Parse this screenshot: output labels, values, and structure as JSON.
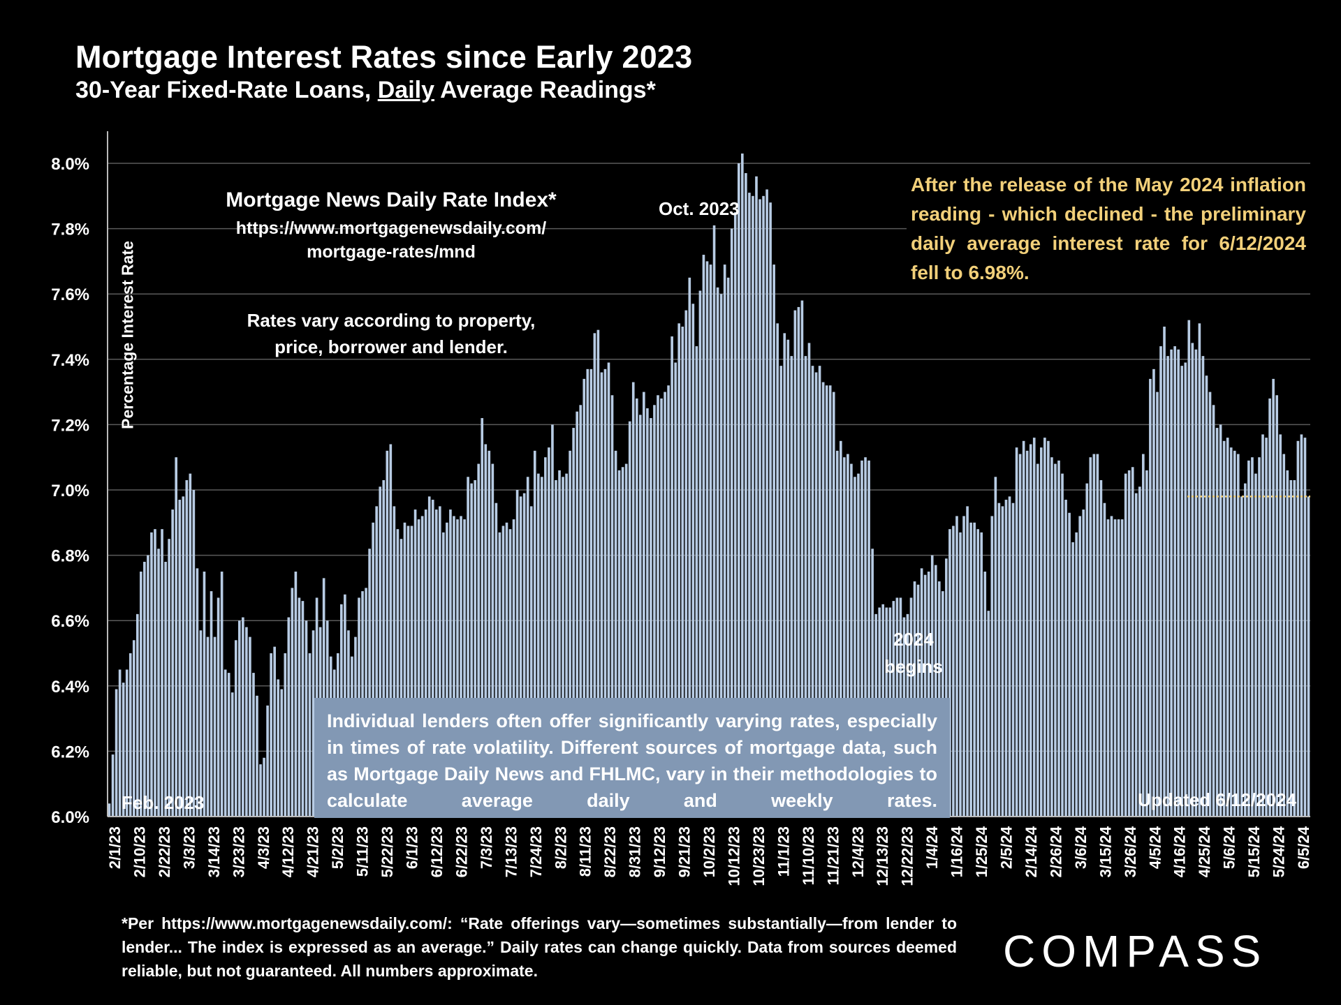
{
  "title": "Mortgage Interest Rates since Early 2023",
  "subtitle_pre": "30-Year Fixed-Rate Loans, ",
  "subtitle_underlined": "Daily",
  "subtitle_post": " Average Readings*",
  "source": {
    "title": "Mortgage News Daily Rate Index*",
    "url_line1": "https://www.mortgagenewsdaily.com/",
    "url_line2": "mortgage-rates/mnd",
    "note": "Rates vary according to property, price, borrower and lender."
  },
  "annotation": "After the release of the May 2024 inflation reading - which declined - the preliminary daily average interest rate for 6/12/2024 fell to 6.98%.",
  "disclaimer": "Individual lenders often offer significantly varying rates, especially in times of rate volatility. Different sources of mortgage data, such as Mortgage Daily News and FHLMC, vary in their methodologies to calculate average daily and weekly rates.",
  "footnote": "*Per https://www.mortgagenewsdaily.com/: “Rate offerings vary—sometimes substantially—from lender to lender... The index is expressed as an average.” Daily rates can change quickly. Data from sources deemed reliable, but not guaranteed. All numbers approximate.",
  "logo": "COMPASS",
  "colors": {
    "bar": "#b8cce4",
    "annotation": "#f2d07a",
    "disclaimer_bg": "#8298b4"
  },
  "chart_data": {
    "type": "bar",
    "title": "Mortgage Interest Rates since Early 2023",
    "ylabel": "Percentage Interest  Rate",
    "ylim": [
      6.0,
      8.1
    ],
    "yticks": [
      "6.0%",
      "6.2%",
      "6.4%",
      "6.6%",
      "6.8%",
      "7.0%",
      "7.2%",
      "7.4%",
      "7.6%",
      "7.8%",
      "8.0%"
    ],
    "ytick_values": [
      6.0,
      6.2,
      6.4,
      6.6,
      6.8,
      7.0,
      7.2,
      7.4,
      7.6,
      7.8,
      8.0
    ],
    "grid": true,
    "x_tick_labels": [
      "2/1/23",
      "2/10/23",
      "2/22/23",
      "3/3/23",
      "3/14/23",
      "3/23/23",
      "4/3/23",
      "4/12/23",
      "4/21/23",
      "5/2/23",
      "5/11/23",
      "5/22/23",
      "6/1/23",
      "6/12/23",
      "6/22/23",
      "7/3/23",
      "7/13/23",
      "7/24/23",
      "8/2/23",
      "8/11/23",
      "8/22/23",
      "8/31/23",
      "9/12/23",
      "9/21/23",
      "10/2/23",
      "10/12/23",
      "10/23/23",
      "11/1/23",
      "11/10/23",
      "11/21/23",
      "12/4/23",
      "12/13/23",
      "12/22/23",
      "1/4/24",
      "1/16/24",
      "1/25/24",
      "2/5/24",
      "2/14/24",
      "2/26/24",
      "3/6/24",
      "3/15/24",
      "3/26/24",
      "4/5/24",
      "4/16/24",
      "4/25/24",
      "5/6/24",
      "5/15/24",
      "5/24/24",
      "6/5/24"
    ],
    "values": [
      6.04,
      6.19,
      6.39,
      6.45,
      6.41,
      6.45,
      6.5,
      6.54,
      6.62,
      6.75,
      6.78,
      6.8,
      6.87,
      6.88,
      6.82,
      6.88,
      6.78,
      6.85,
      6.94,
      7.1,
      6.97,
      6.98,
      7.03,
      7.05,
      7.0,
      6.76,
      6.57,
      6.75,
      6.55,
      6.69,
      6.55,
      6.67,
      6.75,
      6.45,
      6.44,
      6.38,
      6.54,
      6.6,
      6.61,
      6.58,
      6.55,
      6.44,
      6.37,
      6.16,
      6.18,
      6.34,
      6.5,
      6.52,
      6.42,
      6.39,
      6.5,
      6.61,
      6.7,
      6.75,
      6.67,
      6.66,
      6.6,
      6.5,
      6.57,
      6.67,
      6.58,
      6.73,
      6.6,
      6.49,
      6.45,
      6.5,
      6.65,
      6.68,
      6.57,
      6.49,
      6.55,
      6.67,
      6.69,
      6.7,
      6.82,
      6.9,
      6.95,
      7.01,
      7.03,
      7.12,
      7.14,
      6.95,
      6.88,
      6.85,
      6.9,
      6.89,
      6.89,
      6.94,
      6.91,
      6.92,
      6.94,
      6.98,
      6.97,
      6.94,
      6.95,
      6.87,
      6.9,
      6.94,
      6.92,
      6.91,
      6.92,
      6.91,
      7.04,
      7.02,
      7.03,
      7.08,
      7.22,
      7.14,
      7.12,
      7.08,
      6.96,
      6.87,
      6.89,
      6.9,
      6.88,
      6.91,
      7.0,
      6.98,
      6.99,
      7.04,
      6.95,
      7.12,
      7.05,
      7.04,
      7.1,
      7.13,
      7.2,
      7.03,
      7.06,
      7.04,
      7.05,
      7.12,
      7.19,
      7.24,
      7.26,
      7.34,
      7.37,
      7.37,
      7.48,
      7.49,
      7.36,
      7.37,
      7.39,
      7.29,
      7.12,
      7.06,
      7.07,
      7.08,
      7.21,
      7.33,
      7.28,
      7.23,
      7.3,
      7.25,
      7.22,
      7.26,
      7.29,
      7.28,
      7.3,
      7.32,
      7.47,
      7.39,
      7.51,
      7.5,
      7.55,
      7.65,
      7.57,
      7.44,
      7.61,
      7.72,
      7.7,
      7.69,
      7.81,
      7.62,
      7.6,
      7.69,
      7.65,
      7.8,
      7.85,
      8.0,
      8.03,
      7.97,
      7.91,
      7.9,
      7.96,
      7.89,
      7.9,
      7.92,
      7.88,
      7.69,
      7.51,
      7.38,
      7.48,
      7.46,
      7.41,
      7.55,
      7.56,
      7.58,
      7.41,
      7.45,
      7.38,
      7.36,
      7.38,
      7.33,
      7.32,
      7.32,
      7.3,
      7.12,
      7.15,
      7.1,
      7.11,
      7.08,
      7.04,
      7.05,
      7.09,
      7.1,
      7.09,
      6.82,
      6.62,
      6.64,
      6.65,
      6.64,
      6.64,
      6.66,
      6.67,
      6.67,
      6.61,
      6.62,
      6.67,
      6.72,
      6.71,
      6.76,
      6.74,
      6.75,
      6.8,
      6.77,
      6.72,
      6.69,
      6.79,
      6.88,
      6.89,
      6.92,
      6.87,
      6.92,
      6.95,
      6.9,
      6.9,
      6.88,
      6.87,
      6.75,
      6.63,
      6.92,
      7.04,
      6.96,
      6.95,
      6.97,
      6.98,
      6.96,
      7.13,
      7.11,
      7.15,
      7.12,
      7.14,
      7.16,
      7.08,
      7.13,
      7.16,
      7.15,
      7.1,
      7.08,
      7.09,
      7.05,
      6.97,
      6.93,
      6.84,
      6.87,
      6.92,
      6.94,
      7.02,
      7.1,
      7.11,
      7.11,
      7.03,
      6.96,
      6.91,
      6.92,
      6.91,
      6.91,
      6.91,
      7.05,
      7.06,
      7.07,
      6.99,
      7.01,
      7.11,
      7.06,
      7.34,
      7.37,
      7.3,
      7.44,
      7.5,
      7.41,
      7.43,
      7.44,
      7.43,
      7.38,
      7.39,
      7.52,
      7.45,
      7.43,
      7.51,
      7.41,
      7.35,
      7.3,
      7.26,
      7.19,
      7.2,
      7.15,
      7.16,
      7.13,
      7.12,
      7.11,
      6.98,
      7.02,
      7.09,
      7.1,
      7.05,
      7.1,
      7.17,
      7.16,
      7.28,
      7.34,
      7.29,
      7.17,
      7.11,
      7.06,
      7.03,
      7.03,
      7.15,
      7.17,
      7.16,
      6.98
    ],
    "reference_line": {
      "value": 6.98,
      "label": "6/12/2024"
    },
    "annotations": {
      "peak": "Oct. 2023",
      "year_start_line1": "2024",
      "year_start_line2": "begins",
      "start": "Feb. 2023",
      "updated": "Updated 6/12/2024"
    }
  }
}
